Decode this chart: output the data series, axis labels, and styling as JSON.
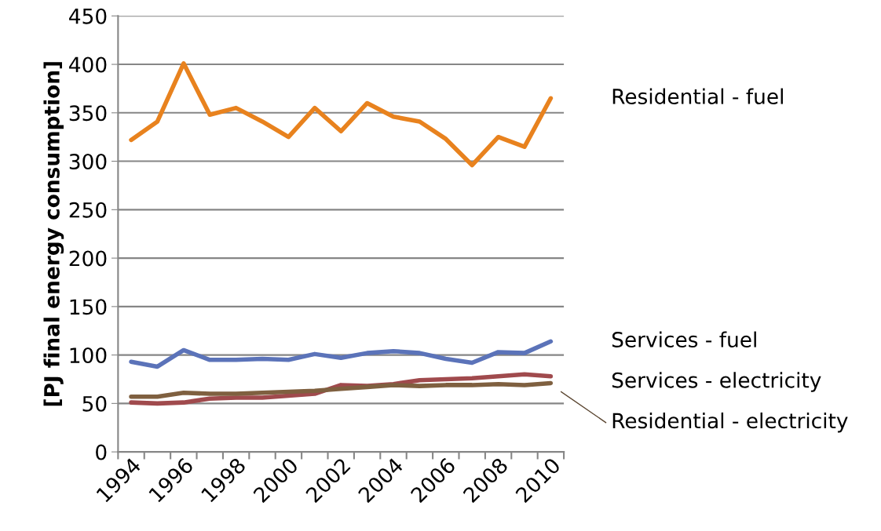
{
  "chart_data": {
    "type": "line",
    "ylabel": "[PJ final energy consumption]",
    "categories": [
      "1994",
      null,
      "1996",
      null,
      "1998",
      null,
      "2000",
      null,
      "2002",
      null,
      "2004",
      null,
      "2006",
      null,
      "2008",
      null,
      "2010"
    ],
    "series": [
      {
        "name": "Residential - fuel",
        "color": "#e8821e",
        "values": [
          322,
          341,
          401,
          348,
          355,
          341,
          325,
          355,
          331,
          360,
          346,
          341,
          323,
          296,
          325,
          315,
          365
        ]
      },
      {
        "name": "Services - fuel",
        "color": "#5b73b9",
        "values": [
          93,
          88,
          105,
          95,
          95,
          96,
          95,
          101,
          97,
          102,
          104,
          102,
          96,
          92,
          103,
          102,
          114
        ]
      },
      {
        "name": "Services - electricity",
        "color": "#a04a4d",
        "values": [
          51,
          50,
          51,
          55,
          56,
          56,
          58,
          60,
          69,
          68,
          70,
          74,
          75,
          76,
          78,
          80,
          78
        ]
      },
      {
        "name": "Residential - electricity",
        "color": "#7f6040",
        "values": [
          57,
          57,
          61,
          60,
          60,
          61,
          62,
          63,
          65,
          67,
          69,
          68,
          69,
          69,
          70,
          69,
          71
        ]
      }
    ],
    "ylim": [
      0,
      450
    ],
    "yticks": [
      0,
      50,
      100,
      150,
      200,
      250,
      300,
      350,
      400,
      450
    ],
    "grid": "y",
    "legend": false,
    "marker": "none",
    "line_style": "solid"
  }
}
